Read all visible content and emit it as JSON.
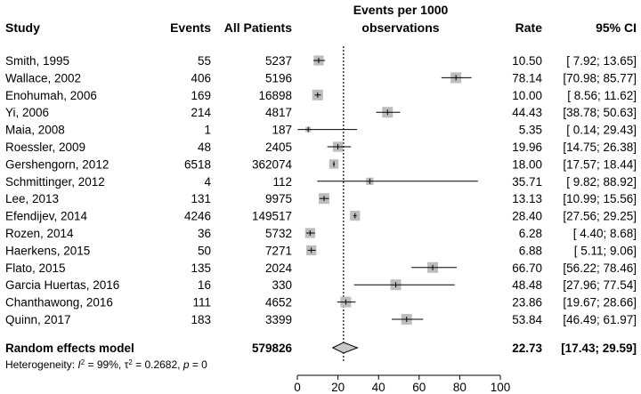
{
  "headers": {
    "study": "Study",
    "events": "Events",
    "patients": "All Patients",
    "plot_title_line1": "Events per 1000",
    "plot_title_line2": "observations",
    "rate": "Rate",
    "ci": "95% CI"
  },
  "summary": {
    "label": "Random effects model",
    "patients": "579826",
    "rate": "22.73",
    "ci": "[17.43; 29.59]"
  },
  "heterogeneity": {
    "prefix": "Heterogeneity: ",
    "i2_symbol": "I",
    "i2_value": " = 99%, ",
    "tau_symbol": "τ",
    "tau_value": " = 0.2682, ",
    "p_symbol": "p",
    "p_value": " = 0"
  },
  "chart_data": {
    "type": "forest",
    "xlim": [
      0,
      100
    ],
    "ticks": [
      0,
      20,
      40,
      60,
      80,
      100
    ],
    "reference_line": 22.73,
    "studies": [
      {
        "study": "Smith, 1995",
        "events": "55",
        "patients": "5237",
        "rate": 10.5,
        "rate_text": "10.50",
        "lo": 7.92,
        "hi": 13.65,
        "ci_text": "[ 7.92; 13.65]",
        "weight": 0.75
      },
      {
        "study": "Wallace, 2002",
        "events": "406",
        "patients": "5196",
        "rate": 78.14,
        "rate_text": "78.14",
        "lo": 70.98,
        "hi": 85.77,
        "ci_text": "[70.98; 85.77]",
        "weight": 0.8
      },
      {
        "study": "Enohumah, 2006",
        "events": "169",
        "patients": "16898",
        "rate": 10.0,
        "rate_text": "10.00",
        "lo": 8.56,
        "hi": 11.62,
        "ci_text": "[ 8.56; 11.62]",
        "weight": 0.8
      },
      {
        "study": "Yi, 2006",
        "events": "214",
        "patients": "4817",
        "rate": 44.43,
        "rate_text": "44.43",
        "lo": 38.78,
        "hi": 50.63,
        "ci_text": "[38.78; 50.63]",
        "weight": 0.8
      },
      {
        "study": "Maia, 2008",
        "events": "1",
        "patients": "187",
        "rate": 5.35,
        "rate_text": "5.35",
        "lo": 0.14,
        "hi": 29.43,
        "ci_text": "[ 0.14; 29.43]",
        "weight": 0.4
      },
      {
        "study": "Roessler, 2009",
        "events": "48",
        "patients": "2405",
        "rate": 19.96,
        "rate_text": "19.96",
        "lo": 14.75,
        "hi": 26.38,
        "ci_text": "[14.75; 26.38]",
        "weight": 0.75
      },
      {
        "study": "Gershengorn, 2012",
        "events": "6518",
        "patients": "362074",
        "rate": 18.0,
        "rate_text": "18.00",
        "lo": 17.57,
        "hi": 18.44,
        "ci_text": "[17.57; 18.44]",
        "weight": 0.7
      },
      {
        "study": "Schmittinger, 2012",
        "events": "4",
        "patients": "112",
        "rate": 35.71,
        "rate_text": "35.71",
        "lo": 9.82,
        "hi": 88.92,
        "ci_text": "[ 9.82; 88.92]",
        "weight": 0.55
      },
      {
        "study": "Lee, 2013",
        "events": "131",
        "patients": "9975",
        "rate": 13.13,
        "rate_text": "13.13",
        "lo": 10.99,
        "hi": 15.56,
        "ci_text": "[10.99; 15.56]",
        "weight": 0.8
      },
      {
        "study": "Efendijev, 2014",
        "events": "4246",
        "patients": "149517",
        "rate": 28.4,
        "rate_text": "28.40",
        "lo": 27.56,
        "hi": 29.25,
        "ci_text": "[27.56; 29.25]",
        "weight": 0.75
      },
      {
        "study": "Rozen, 2014",
        "events": "36",
        "patients": "5732",
        "rate": 6.28,
        "rate_text": "6.28",
        "lo": 4.4,
        "hi": 8.68,
        "ci_text": "[ 4.40;   8.68]",
        "weight": 0.75
      },
      {
        "study": "Haerkens, 2015",
        "events": "50",
        "patients": "7271",
        "rate": 6.88,
        "rate_text": "6.88",
        "lo": 5.11,
        "hi": 9.06,
        "ci_text": "[ 5.11;   9.06]",
        "weight": 0.75
      },
      {
        "study": "Flato, 2015",
        "events": "135",
        "patients": "2024",
        "rate": 66.7,
        "rate_text": "66.70",
        "lo": 56.22,
        "hi": 78.46,
        "ci_text": "[56.22; 78.46]",
        "weight": 0.8
      },
      {
        "study": "Garcia Huertas, 2016",
        "events": "16",
        "patients": "330",
        "rate": 48.48,
        "rate_text": "48.48",
        "lo": 27.96,
        "hi": 77.54,
        "ci_text": "[27.96; 77.54]",
        "weight": 0.8
      },
      {
        "study": "Chanthawong, 2016",
        "events": "111",
        "patients": "4652",
        "rate": 23.86,
        "rate_text": "23.86",
        "lo": 19.67,
        "hi": 28.66,
        "ci_text": "[19.67; 28.66]",
        "weight": 0.8
      },
      {
        "study": "Quinn, 2017",
        "events": "183",
        "patients": "3399",
        "rate": 53.84,
        "rate_text": "53.84",
        "lo": 46.49,
        "hi": 61.97,
        "ci_text": "[46.49; 61.97]",
        "weight": 0.8
      }
    ],
    "pooled": {
      "rate": 22.73,
      "lo": 17.43,
      "hi": 29.59
    }
  },
  "colors": {
    "box": "#bdbdbd",
    "line": "#000000",
    "diamond": "#c8c8c8"
  }
}
